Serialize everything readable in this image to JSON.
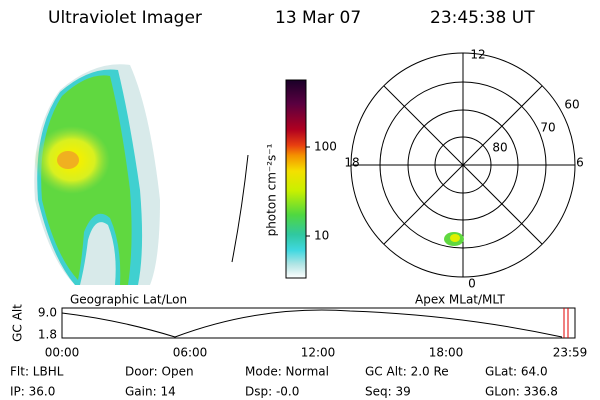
{
  "header": {
    "title": "Ultraviolet Imager",
    "date": "13 Mar 07",
    "time": "23:45:38 UT"
  },
  "colorbar": {
    "label": "photon cm⁻²s⁻¹",
    "ticks": [
      "100",
      "10"
    ]
  },
  "polar": {
    "hour_labels": [
      "12",
      "18",
      "6",
      "0"
    ],
    "lat_labels": [
      "60",
      "70",
      "80"
    ]
  },
  "timeline": {
    "left_title": "Geographic Lat/Lon",
    "right_title": "Apex MLat/MLT",
    "y_label": "GC Alt",
    "y_ticks": [
      "9.0",
      "1.8"
    ],
    "x_ticks": [
      "00:00",
      "06:00",
      "12:00",
      "18:00",
      "23:59"
    ]
  },
  "info": {
    "rows": [
      [
        "Flt: LBHL",
        "Door: Open",
        "Mode: Normal",
        "GC Alt: 2.0 Re",
        "GLat: 64.0"
      ],
      [
        "IP: 36.0",
        "Gain: 14",
        "Dsp: -0.0",
        "Seq: 39",
        "GLon: 336.8"
      ]
    ]
  }
}
